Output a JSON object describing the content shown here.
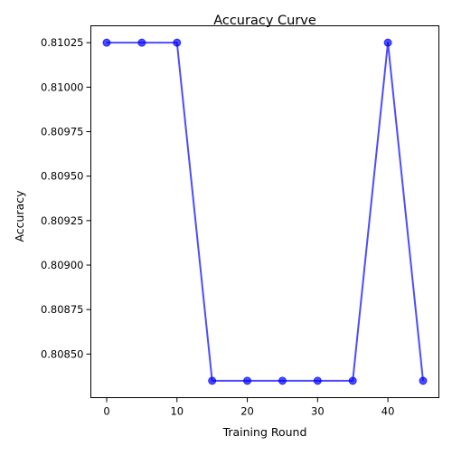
{
  "chart_data": {
    "type": "line",
    "title": "Accuracy Curve",
    "xlabel": "Training Round",
    "ylabel": "Accuracy",
    "x": [
      0,
      5,
      10,
      15,
      20,
      25,
      30,
      35,
      40,
      45
    ],
    "series": [
      {
        "values": [
          0.81025,
          0.81025,
          0.81025,
          0.80835,
          0.80835,
          0.80835,
          0.80835,
          0.80835,
          0.81025,
          0.80835
        ],
        "color": "#0000ff",
        "marker": "circle"
      }
    ],
    "xlim": [
      -2.25,
      47.25
    ],
    "ylim": [
      0.808255,
      0.810345
    ],
    "xticks": [
      "0",
      "10",
      "20",
      "30",
      "40"
    ],
    "xtick_values": [
      0,
      10,
      20,
      30,
      40
    ],
    "yticks": [
      "0.80850",
      "0.80875",
      "0.80900",
      "0.80925",
      "0.80950",
      "0.80975",
      "0.81000",
      "0.81025"
    ],
    "ytick_values": [
      0.8085,
      0.80875,
      0.809,
      0.80925,
      0.8095,
      0.80975,
      0.81,
      0.81025
    ],
    "grid": false,
    "legend": "none"
  }
}
